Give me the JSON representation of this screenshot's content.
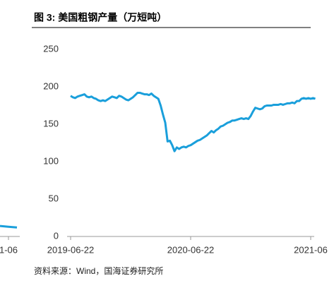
{
  "title": "图 3:  美国粗钢产量（万短吨）",
  "source": "资料来源：Wind，国海证券研究所",
  "chart_data": [
    {
      "type": "line",
      "color": "#1a9fdb",
      "categories": [
        "2019-06-22",
        null,
        null,
        null,
        null,
        null,
        null,
        null,
        null,
        null,
        null,
        null,
        null,
        null,
        null,
        null,
        null,
        null,
        null,
        null,
        null,
        null,
        null,
        null,
        null,
        null,
        null,
        null,
        null,
        null,
        null,
        null,
        null,
        null,
        null,
        null,
        null,
        null,
        null,
        null,
        null,
        null,
        null,
        null,
        null,
        null,
        null,
        null,
        null,
        null,
        null,
        null,
        "2020-06-22",
        null,
        null,
        null,
        null,
        null,
        null,
        null,
        null,
        null,
        null,
        null,
        null,
        null,
        null,
        null,
        null,
        null,
        null,
        null,
        null,
        null,
        null,
        null,
        null,
        null,
        null,
        null,
        null,
        null,
        null,
        null,
        null,
        null,
        null,
        null,
        null,
        null,
        null,
        null,
        null,
        null,
        null,
        null,
        null,
        null,
        null,
        null,
        null,
        null,
        null,
        null,
        "2021-06",
        null,
        null
      ],
      "values": [
        188,
        186,
        185,
        187,
        188,
        189,
        190,
        187,
        186,
        187,
        185,
        184,
        182,
        181,
        182,
        181,
        183,
        185,
        187,
        186,
        185,
        188,
        187,
        185,
        183,
        182,
        184,
        186,
        189,
        192,
        192,
        191,
        190,
        190,
        189,
        191,
        188,
        186,
        184,
        175,
        163,
        152,
        127,
        128,
        122,
        114,
        119,
        117,
        119,
        120,
        119,
        121,
        122,
        124,
        126,
        128,
        129,
        131,
        133,
        135,
        138,
        141,
        139,
        142,
        144,
        147,
        148,
        150,
        152,
        153,
        155,
        155,
        156,
        157,
        158,
        157,
        158,
        157,
        161,
        167,
        172,
        171,
        170,
        171,
        174,
        175,
        175,
        175,
        176,
        176,
        176,
        177,
        176,
        177,
        178,
        178,
        179,
        178,
        181,
        181,
        184,
        185,
        184,
        185,
        184,
        185,
        184
      ],
      "ylim": [
        0,
        250
      ],
      "yticks": [
        0,
        50,
        100,
        150,
        200,
        250
      ]
    },
    {
      "type": "line",
      "color": "#1a9fdb",
      "categories": [
        null,
        "1-06",
        null
      ],
      "values": [
        14,
        13,
        12
      ]
    }
  ]
}
